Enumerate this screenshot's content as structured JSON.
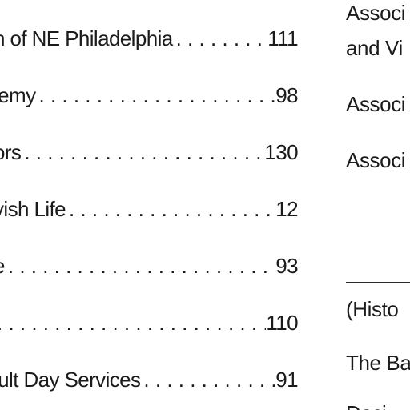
{
  "left_entries": [
    {
      "name": "h of NE Philadelphia",
      "page": "111"
    },
    {
      "name": "lemy",
      "page": "98"
    },
    {
      "name": "ors",
      "page": "130"
    },
    {
      "name": "vish Life",
      "page": "12"
    },
    {
      "name": "e",
      "page": "93"
    },
    {
      "name": "",
      "page": "110"
    },
    {
      "name": "lult Day Services",
      "page": "91"
    }
  ],
  "right_entries": [
    {
      "line1": "Associ",
      "line2": "and Vi"
    },
    {
      "line1": "Associ"
    },
    {
      "line1": "Associ"
    },
    {
      "line1": "(Histo"
    },
    {
      "line1": "The Ba"
    },
    {
      "line1": "Deci"
    }
  ]
}
